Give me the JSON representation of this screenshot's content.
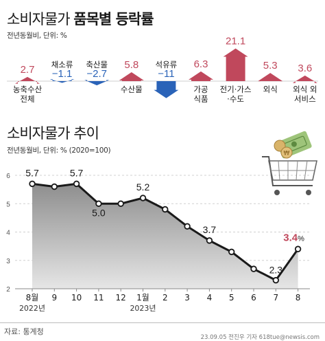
{
  "section1": {
    "title_plain": "소비자물가",
    "title_bold": "품목별 등락률",
    "unit": "전년동월비, 단위: %"
  },
  "section2": {
    "title": "소비자물가 추이",
    "unit": "전년동월비, 단위: % (2020=100)"
  },
  "source": "자료: 통계청",
  "credit": "23.09.05 전진우 기자 618tue@newsis.com",
  "colors": {
    "up": "#c0485c",
    "down": "#2a63b8",
    "line": "#1a1a1a",
    "area": "#8e8e8e"
  },
  "chart_data": [
    {
      "type": "bar",
      "categories": [
        "농축수산\n전체",
        "채소류",
        "축산물",
        "수산물",
        "석유류",
        "가공\n식품",
        "전기·가스\n·수도",
        "외식",
        "외식 외\n서비스"
      ],
      "values": [
        2.7,
        -1.1,
        -2.7,
        5.8,
        -11,
        6.3,
        21.1,
        5.3,
        3.6
      ],
      "value_labels": [
        "2.7",
        "−1.1",
        "−2.7",
        "5.8",
        "−11",
        "6.3",
        "21.1",
        "5.3",
        "3.6"
      ]
    },
    {
      "type": "area",
      "x": [
        "8월",
        "9",
        "10",
        "11",
        "12",
        "1월",
        "2",
        "3",
        "4",
        "5",
        "6",
        "7",
        "8"
      ],
      "year_labels": [
        "2022년",
        "2023년"
      ],
      "values": [
        5.7,
        5.6,
        5.7,
        5.0,
        5.0,
        5.2,
        4.8,
        4.2,
        3.7,
        3.3,
        2.7,
        2.3,
        3.4
      ],
      "point_labels": [
        "5.7",
        "",
        "5.7",
        "5.0",
        "",
        "5.2",
        "",
        "",
        "3.7",
        "",
        "",
        "2.3",
        "3.4"
      ],
      "highlight_suffix": "%",
      "ylim": [
        2,
        6
      ],
      "yticks": [
        "2",
        "3",
        "4",
        "5",
        "6"
      ]
    }
  ]
}
